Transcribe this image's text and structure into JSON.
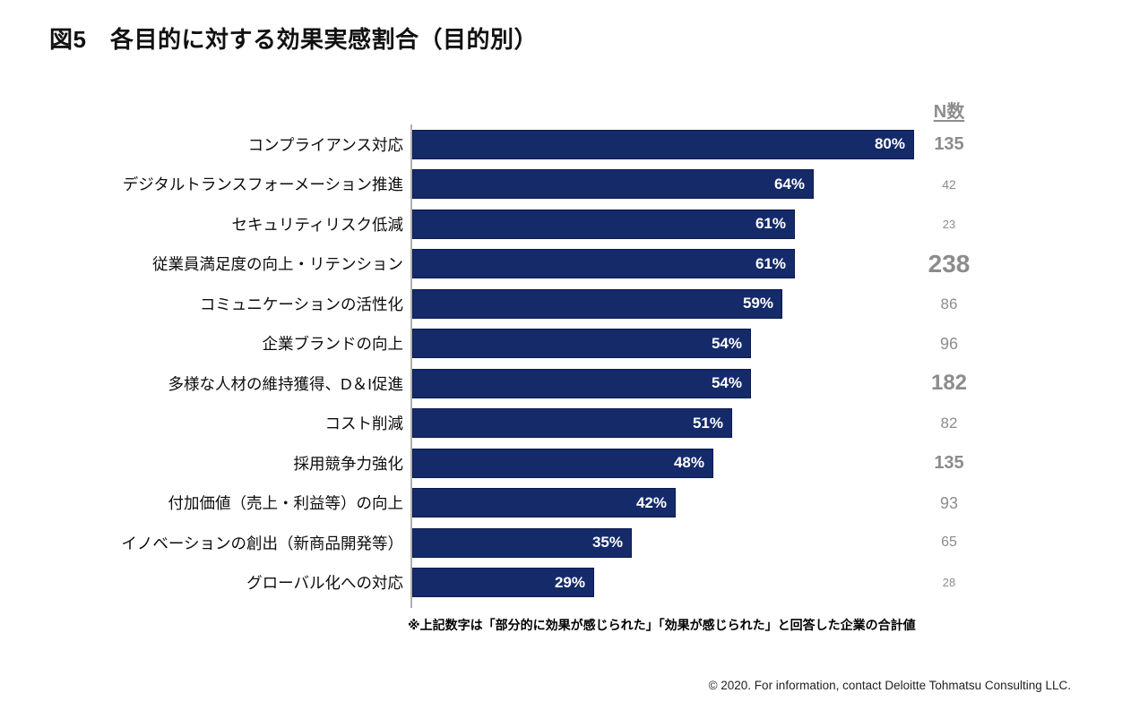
{
  "page": {
    "title": "図5　各目的に対する効果実感割合（目的別）",
    "footnote": "※上記数字は「部分的に効果が感じられた」「効果が感じられた」と回答した企業の合計値",
    "footer": "© 2020. For information, contact Deloitte Tohmatsu Consulting LLC."
  },
  "colors": {
    "bar": "#142a69",
    "bar_value_text": "#ffffff",
    "n_text": "#8c8c8c",
    "axis": "#b0b0b0"
  },
  "chart_data": {
    "type": "bar",
    "orientation": "horizontal",
    "title": "図5　各目的に対する効果実感割合（目的別）",
    "xlabel": "",
    "ylabel": "",
    "xlim": [
      0,
      100
    ],
    "value_suffix": "%",
    "grid": false,
    "legend": false,
    "n_header": "N数",
    "categories": [
      "コンプライアンス対応",
      "デジタルトランスフォーメーション推進",
      "セキュリティリスク低減",
      "従業員満足度の向上・リテンション",
      "コミュニケーションの活性化",
      "企業ブランドの向上",
      "多様な人材の維持獲得、D＆I促進",
      "コスト削減",
      "採用競争力強化",
      "付加価値（売上・利益等）の向上",
      "イノベーションの創出（新商品開発等）",
      "グローバル化への対応"
    ],
    "values": [
      80,
      64,
      61,
      61,
      59,
      54,
      54,
      51,
      48,
      42,
      35,
      29
    ],
    "n_values": [
      135,
      42,
      23,
      238,
      86,
      96,
      182,
      82,
      135,
      93,
      65,
      28
    ],
    "rows": [
      {
        "label": "コンプライアンス対応",
        "percent": 80,
        "percent_label": "80%",
        "n": 135
      },
      {
        "label": "デジタルトランスフォーメーション推進",
        "percent": 64,
        "percent_label": "64%",
        "n": 42
      },
      {
        "label": "セキュリティリスク低減",
        "percent": 61,
        "percent_label": "61%",
        "n": 23
      },
      {
        "label": "従業員満足度の向上・リテンション",
        "percent": 61,
        "percent_label": "61%",
        "n": 238
      },
      {
        "label": "コミュニケーションの活性化",
        "percent": 59,
        "percent_label": "59%",
        "n": 86
      },
      {
        "label": "企業ブランドの向上",
        "percent": 54,
        "percent_label": "54%",
        "n": 96
      },
      {
        "label": "多様な人材の維持獲得、D＆I促進",
        "percent": 54,
        "percent_label": "54%",
        "n": 182
      },
      {
        "label": "コスト削減",
        "percent": 51,
        "percent_label": "51%",
        "n": 82
      },
      {
        "label": "採用競争力強化",
        "percent": 48,
        "percent_label": "48%",
        "n": 135
      },
      {
        "label": "付加価値（売上・利益等）の向上",
        "percent": 42,
        "percent_label": "42%",
        "n": 93
      },
      {
        "label": "イノベーションの創出（新商品開発等）",
        "percent": 35,
        "percent_label": "35%",
        "n": 65
      },
      {
        "label": "グローバル化への対応",
        "percent": 29,
        "percent_label": "29%",
        "n": 28
      }
    ]
  }
}
